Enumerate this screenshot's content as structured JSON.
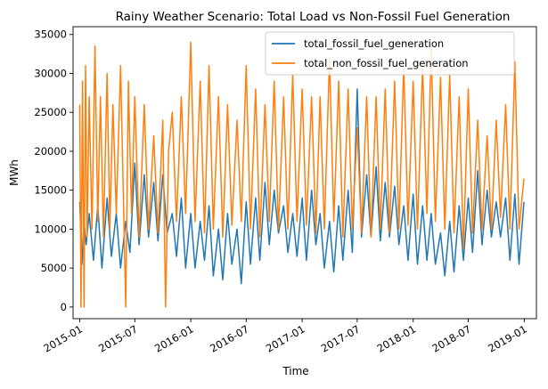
{
  "chart_data": {
    "type": "line",
    "title": "Rainy Weather Scenario: Total Load vs Non-Fossil Fuel Generation",
    "xlabel": "Time",
    "ylabel": "MWh",
    "xlim": [
      "2014-12-10",
      "2019-02-10"
    ],
    "ylim": [
      -1500,
      36000
    ],
    "x_ticks": [
      "2015-01",
      "2015-07",
      "2016-01",
      "2016-07",
      "2017-01",
      "2017-07",
      "2018-01",
      "2018-07",
      "2019-01"
    ],
    "y_ticks": [
      0,
      5000,
      10000,
      15000,
      20000,
      25000,
      30000,
      35000
    ],
    "grid": false,
    "legend": "top-right",
    "series": [
      {
        "name": "total_fossil_fuel_generation",
        "color": "#1f77b4",
        "x": [
          "2015-01-01",
          "2015-01-08",
          "2015-01-15",
          "2015-01-22",
          "2015-02-01",
          "2015-02-15",
          "2015-03-01",
          "2015-03-15",
          "2015-04-01",
          "2015-04-15",
          "2015-05-01",
          "2015-05-15",
          "2015-06-01",
          "2015-06-15",
          "2015-07-01",
          "2015-07-15",
          "2015-08-01",
          "2015-08-15",
          "2015-09-01",
          "2015-09-15",
          "2015-10-01",
          "2015-10-15",
          "2015-11-01",
          "2015-11-15",
          "2015-12-01",
          "2015-12-15",
          "2016-01-01",
          "2016-01-15",
          "2016-02-01",
          "2016-02-15",
          "2016-03-01",
          "2016-03-15",
          "2016-04-01",
          "2016-04-15",
          "2016-05-01",
          "2016-05-15",
          "2016-06-01",
          "2016-06-15",
          "2016-07-01",
          "2016-07-15",
          "2016-08-01",
          "2016-08-15",
          "2016-09-01",
          "2016-09-15",
          "2016-10-01",
          "2016-10-15",
          "2016-11-01",
          "2016-11-15",
          "2016-12-01",
          "2016-12-15",
          "2017-01-01",
          "2017-01-15",
          "2017-02-01",
          "2017-02-15",
          "2017-03-01",
          "2017-03-15",
          "2017-04-01",
          "2017-04-15",
          "2017-05-01",
          "2017-05-15",
          "2017-06-01",
          "2017-06-15",
          "2017-07-01",
          "2017-07-15",
          "2017-08-01",
          "2017-08-15",
          "2017-09-01",
          "2017-09-15",
          "2017-10-01",
          "2017-10-15",
          "2017-11-01",
          "2017-11-15",
          "2017-12-01",
          "2017-12-15",
          "2018-01-01",
          "2018-01-15",
          "2018-02-01",
          "2018-02-15",
          "2018-03-01",
          "2018-03-15",
          "2018-04-01",
          "2018-04-15",
          "2018-05-01",
          "2018-05-15",
          "2018-06-01",
          "2018-06-15",
          "2018-07-01",
          "2018-07-15",
          "2018-08-01",
          "2018-08-15",
          "2018-09-01",
          "2018-09-15",
          "2018-10-01",
          "2018-10-15",
          "2018-11-01",
          "2018-11-15",
          "2018-12-01",
          "2018-12-15",
          "2018-12-31"
        ],
        "values": [
          13500,
          5500,
          11000,
          8000,
          12000,
          6000,
          13000,
          5000,
          14000,
          6500,
          12000,
          5000,
          11000,
          7000,
          18500,
          8000,
          17000,
          9000,
          16000,
          8500,
          17000,
          9500,
          12000,
          6500,
          14000,
          5000,
          12000,
          5000,
          11000,
          6000,
          13000,
          4000,
          10000,
          3500,
          12000,
          5500,
          10000,
          3000,
          13500,
          5500,
          14000,
          6000,
          16000,
          8000,
          15000,
          9500,
          13000,
          7000,
          12000,
          6500,
          14000,
          6000,
          15000,
          8000,
          12000,
          5000,
          11000,
          4500,
          13000,
          6000,
          15000,
          7000,
          28000,
          9000,
          17000,
          9000,
          18000,
          8500,
          16000,
          9000,
          15500,
          8000,
          13000,
          6000,
          14500,
          5500,
          13000,
          6000,
          12000,
          5500,
          9500,
          4000,
          11000,
          4500,
          13000,
          6000,
          14000,
          7000,
          17500,
          8000,
          15000,
          9000,
          13500,
          9000,
          14000,
          6000,
          14500,
          5500,
          13500
        ]
      },
      {
        "name": "total_non_fossil_fuel_generation",
        "color": "#ff7f0e",
        "x": [
          "2015-01-01",
          "2015-01-05",
          "2015-01-10",
          "2015-01-15",
          "2015-01-20",
          "2015-01-25",
          "2015-02-01",
          "2015-02-10",
          "2015-02-20",
          "2015-03-01",
          "2015-03-10",
          "2015-03-20",
          "2015-04-01",
          "2015-04-10",
          "2015-04-20",
          "2015-05-01",
          "2015-05-15",
          "2015-06-01",
          "2015-06-10",
          "2015-06-20",
          "2015-07-01",
          "2015-07-15",
          "2015-08-01",
          "2015-08-15",
          "2015-09-01",
          "2015-09-15",
          "2015-10-01",
          "2015-10-10",
          "2015-10-20",
          "2015-11-01",
          "2015-11-15",
          "2015-12-01",
          "2015-12-15",
          "2016-01-01",
          "2016-01-15",
          "2016-02-01",
          "2016-02-15",
          "2016-03-01",
          "2016-03-15",
          "2016-04-01",
          "2016-04-15",
          "2016-05-01",
          "2016-05-15",
          "2016-06-01",
          "2016-06-15",
          "2016-07-01",
          "2016-07-15",
          "2016-08-01",
          "2016-08-15",
          "2016-09-01",
          "2016-09-15",
          "2016-10-01",
          "2016-10-15",
          "2016-11-01",
          "2016-11-15",
          "2016-12-01",
          "2016-12-15",
          "2017-01-01",
          "2017-01-15",
          "2017-02-01",
          "2017-02-15",
          "2017-03-01",
          "2017-03-15",
          "2017-04-01",
          "2017-04-15",
          "2017-05-01",
          "2017-05-15",
          "2017-06-01",
          "2017-06-15",
          "2017-07-01",
          "2017-07-15",
          "2017-08-01",
          "2017-08-15",
          "2017-09-01",
          "2017-09-15",
          "2017-10-01",
          "2017-10-15",
          "2017-11-01",
          "2017-11-15",
          "2017-12-01",
          "2017-12-15",
          "2018-01-01",
          "2018-01-15",
          "2018-02-01",
          "2018-02-15",
          "2018-03-01",
          "2018-03-15",
          "2018-04-01",
          "2018-04-15",
          "2018-05-01",
          "2018-05-15",
          "2018-06-01",
          "2018-06-15",
          "2018-07-01",
          "2018-07-15",
          "2018-08-01",
          "2018-08-15",
          "2018-09-01",
          "2018-09-15",
          "2018-10-01",
          "2018-10-15",
          "2018-11-01",
          "2018-11-15",
          "2018-12-01",
          "2018-12-15",
          "2018-12-31"
        ],
        "values": [
          26000,
          0,
          29000,
          0,
          31000,
          9000,
          27000,
          10000,
          33500,
          11000,
          27000,
          9000,
          30000,
          10000,
          26000,
          12000,
          31000,
          0,
          29000,
          12000,
          27000,
          9000,
          26000,
          10000,
          22000,
          9500,
          24000,
          0,
          20000,
          25000,
          11000,
          27000,
          12000,
          34000,
          11000,
          29000,
          9500,
          31000,
          10000,
          27000,
          9000,
          26000,
          10500,
          24000,
          11000,
          31000,
          10000,
          28000,
          9000,
          26000,
          11000,
          29000,
          10000,
          27000,
          10000,
          30000,
          11000,
          28000,
          10500,
          27000,
          9500,
          27000,
          10000,
          32000,
          11000,
          29000,
          9000,
          28000,
          10000,
          23000,
          9500,
          27000,
          9000,
          27000,
          10000,
          28000,
          9500,
          29000,
          10000,
          31000,
          10500,
          29000,
          10000,
          31000,
          12000,
          33500,
          11000,
          29500,
          10000,
          30000,
          9500,
          27000,
          7500,
          28000,
          9500,
          24000,
          10000,
          22000,
          10000,
          24000,
          11500,
          26000,
          10000,
          31500,
          10000,
          16500
        ]
      }
    ]
  }
}
